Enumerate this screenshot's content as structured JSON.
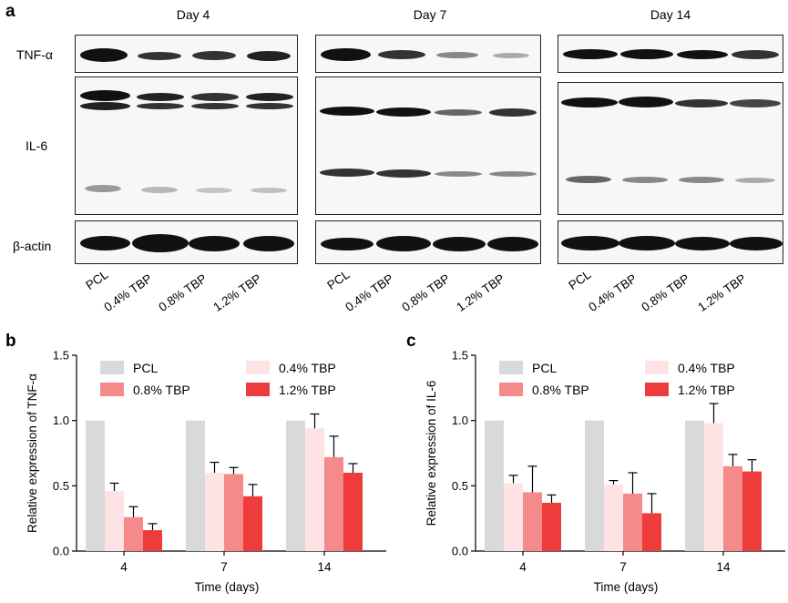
{
  "panel_a": {
    "letter": "a",
    "days": [
      "Day 4",
      "Day 7",
      "Day 14"
    ],
    "row_labels": [
      "TNF-α",
      "IL-6",
      "β-actin"
    ],
    "lanes": [
      "PCL",
      "0.4% TBP",
      "0.8% TBP",
      "1.2% TBP"
    ]
  },
  "panel_b": {
    "letter": "b"
  },
  "panel_c": {
    "letter": "c"
  },
  "chart_data": [
    {
      "type": "bar",
      "categories": [
        "4",
        "7",
        "14"
      ],
      "series": [
        {
          "name": "PCL",
          "values": [
            1.0,
            1.0,
            1.0
          ],
          "errors": [
            0,
            0,
            0
          ],
          "color": "#d9d9d9"
        },
        {
          "name": "0.4% TBP",
          "values": [
            0.46,
            0.6,
            0.94
          ],
          "errors": [
            0.06,
            0.08,
            0.11
          ],
          "color": "#fde3e3"
        },
        {
          "name": "0.8% TBP",
          "values": [
            0.26,
            0.59,
            0.72
          ],
          "errors": [
            0.08,
            0.05,
            0.16
          ],
          "color": "#f58a8a"
        },
        {
          "name": "1.2% TBP",
          "values": [
            0.16,
            0.42,
            0.6
          ],
          "errors": [
            0.05,
            0.09,
            0.07
          ],
          "color": "#ee3b3b"
        }
      ],
      "xlabel": "Time (days)",
      "ylabel": "Relative expression of TNF-α",
      "ylim": [
        0,
        1.5
      ],
      "yticks": [
        "0.0",
        "0.5",
        "1.0",
        "1.5"
      ],
      "legend": "top"
    },
    {
      "type": "bar",
      "categories": [
        "4",
        "7",
        "14"
      ],
      "series": [
        {
          "name": "PCL",
          "values": [
            1.0,
            1.0,
            1.0
          ],
          "errors": [
            0,
            0,
            0
          ],
          "color": "#d9d9d9"
        },
        {
          "name": "0.4% TBP",
          "values": [
            0.52,
            0.51,
            0.98
          ],
          "errors": [
            0.06,
            0.03,
            0.15
          ],
          "color": "#fde3e3"
        },
        {
          "name": "0.8% TBP",
          "values": [
            0.45,
            0.44,
            0.65
          ],
          "errors": [
            0.2,
            0.16,
            0.09
          ],
          "color": "#f58a8a"
        },
        {
          "name": "1.2% TBP",
          "values": [
            0.37,
            0.29,
            0.61
          ],
          "errors": [
            0.06,
            0.15,
            0.09
          ],
          "color": "#ee3b3b"
        }
      ],
      "xlabel": "Time (days)",
      "ylabel": "Relative expression of IL-6",
      "ylim": [
        0,
        1.5
      ],
      "yticks": [
        "0.0",
        "0.5",
        "1.0",
        "1.5"
      ],
      "legend": "top"
    }
  ]
}
